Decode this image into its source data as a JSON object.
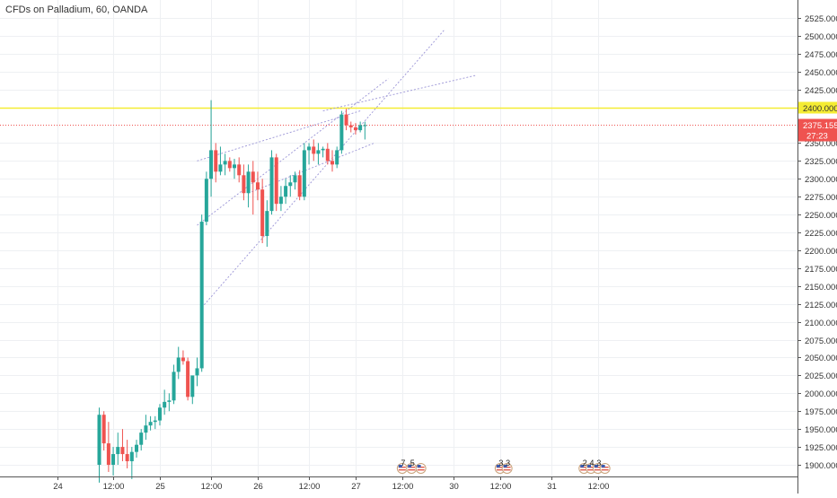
{
  "header": {
    "title": "CFDs on Palladium, 60, OANDA"
  },
  "colors": {
    "up": "#26a69a",
    "down": "#ef5350",
    "grid": "#eef0f3",
    "axis": "#555555",
    "horizontal_line": "#f5ec33",
    "price_line": "#ef5350",
    "trend_line": "#9a94d6"
  },
  "chart_data": {
    "type": "candlestick",
    "ylim": [
      1875,
      2537.5
    ],
    "y_ticks": [
      "1900.000",
      "1925.000",
      "1950.000",
      "1975.000",
      "2000.000",
      "2025.000",
      "2050.000",
      "2075.000",
      "2100.000",
      "2125.000",
      "2150.000",
      "2175.000",
      "2200.000",
      "2225.000",
      "2250.000",
      "2275.000",
      "2300.000",
      "2325.000",
      "2350.000",
      "2400.000",
      "2425.000",
      "2450.000",
      "2475.000",
      "2500.000",
      "2525.000"
    ],
    "x_ticks": [
      {
        "label": "24",
        "bar": -9
      },
      {
        "label": "12:00",
        "bar": 3
      },
      {
        "label": "25",
        "bar": 13
      },
      {
        "label": "12:00",
        "bar": 24
      },
      {
        "label": "26",
        "bar": 34
      },
      {
        "label": "12:00",
        "bar": 45
      },
      {
        "label": "27",
        "bar": 55
      },
      {
        "label": "12:00",
        "bar": 65
      },
      {
        "label": "30",
        "bar": 76
      },
      {
        "label": "12:00",
        "bar": 86
      },
      {
        "label": "31",
        "bar": 97
      },
      {
        "label": "12:00",
        "bar": 107
      }
    ],
    "candles": [
      [
        1900,
        1980,
        1875,
        1970
      ],
      [
        1970,
        1975,
        1920,
        1930
      ],
      [
        1930,
        1960,
        1890,
        1900
      ],
      [
        1900,
        1925,
        1885,
        1915
      ],
      [
        1915,
        1945,
        1900,
        1925
      ],
      [
        1925,
        1950,
        1905,
        1915
      ],
      [
        1915,
        1935,
        1895,
        1905
      ],
      [
        1905,
        1925,
        1880,
        1918
      ],
      [
        1918,
        1935,
        1910,
        1928
      ],
      [
        1928,
        1950,
        1920,
        1945
      ],
      [
        1945,
        1970,
        1935,
        1955
      ],
      [
        1955,
        1968,
        1948,
        1960
      ],
      [
        1960,
        1968,
        1950,
        1962
      ],
      [
        1962,
        1985,
        1955,
        1980
      ],
      [
        1980,
        2005,
        1970,
        1988
      ],
      [
        1988,
        2000,
        1975,
        1990
      ],
      [
        1990,
        2040,
        1985,
        2030
      ],
      [
        2030,
        2065,
        2020,
        2050
      ],
      [
        2050,
        2060,
        2040,
        2045
      ],
      [
        2045,
        2050,
        1990,
        1995
      ],
      [
        1995,
        2020,
        1985,
        2025
      ],
      [
        2025,
        2050,
        2010,
        2035
      ],
      [
        2035,
        2250,
        2030,
        2240
      ],
      [
        2240,
        2310,
        2235,
        2300
      ],
      [
        2300,
        2410,
        2275,
        2340
      ],
      [
        2340,
        2350,
        2295,
        2310
      ],
      [
        2310,
        2345,
        2305,
        2320
      ],
      [
        2320,
        2335,
        2305,
        2325
      ],
      [
        2325,
        2330,
        2310,
        2315
      ],
      [
        2315,
        2328,
        2300,
        2320
      ],
      [
        2320,
        2330,
        2295,
        2305
      ],
      [
        2305,
        2320,
        2270,
        2280
      ],
      [
        2280,
        2320,
        2260,
        2310
      ],
      [
        2310,
        2325,
        2250,
        2295
      ],
      [
        2295,
        2310,
        2270,
        2285
      ],
      [
        2285,
        2300,
        2210,
        2220
      ],
      [
        2220,
        2270,
        2205,
        2255
      ],
      [
        2255,
        2340,
        2250,
        2330
      ],
      [
        2330,
        2335,
        2255,
        2265
      ],
      [
        2265,
        2290,
        2255,
        2275
      ],
      [
        2275,
        2300,
        2265,
        2290
      ],
      [
        2290,
        2305,
        2275,
        2295
      ],
      [
        2295,
        2310,
        2285,
        2305
      ],
      [
        2305,
        2312,
        2270,
        2275
      ],
      [
        2275,
        2350,
        2270,
        2340
      ],
      [
        2340,
        2350,
        2320,
        2345
      ],
      [
        2345,
        2355,
        2325,
        2335
      ],
      [
        2335,
        2350,
        2320,
        2340
      ],
      [
        2340,
        2345,
        2330,
        2342
      ],
      [
        2342,
        2350,
        2320,
        2325
      ],
      [
        2325,
        2340,
        2310,
        2320
      ],
      [
        2320,
        2345,
        2315,
        2340
      ],
      [
        2340,
        2395,
        2335,
        2390
      ],
      [
        2390,
        2398,
        2368,
        2375
      ],
      [
        2375,
        2380,
        2365,
        2372
      ],
      [
        2372,
        2378,
        2362,
        2368
      ],
      [
        2368,
        2380,
        2365,
        2375
      ],
      [
        2375,
        2380,
        2355,
        2375
      ]
    ],
    "horizontal_line": {
      "value": 2400,
      "label": "2400.000"
    },
    "last_price": {
      "value": 2375.155,
      "label": "2375.155",
      "countdown": "27:23"
    },
    "trend_lines": [
      {
        "from": [
          21,
          2325
        ],
        "to": [
          56,
          2395
        ]
      },
      {
        "from": [
          21,
          2235
        ],
        "to": [
          62,
          2440
        ]
      },
      {
        "from": [
          22,
          2120
        ],
        "to": [
          74,
          2508
        ]
      },
      {
        "from": [
          32,
          2280
        ],
        "to": [
          59,
          2350
        ]
      },
      {
        "from": [
          48,
          2395
        ],
        "to": [
          81,
          2445
        ]
      }
    ],
    "event_markers": [
      {
        "bar": 65,
        "label": "7"
      },
      {
        "bar": 67,
        "label": "5"
      },
      {
        "bar": 69,
        "label": ""
      },
      {
        "bar": 86,
        "label": "3"
      },
      {
        "bar": 87.5,
        "label": "3"
      },
      {
        "bar": 104,
        "label": "2"
      },
      {
        "bar": 105.5,
        "label": "4"
      },
      {
        "bar": 107,
        "label": "3"
      },
      {
        "bar": 108.5,
        "label": ""
      }
    ]
  }
}
